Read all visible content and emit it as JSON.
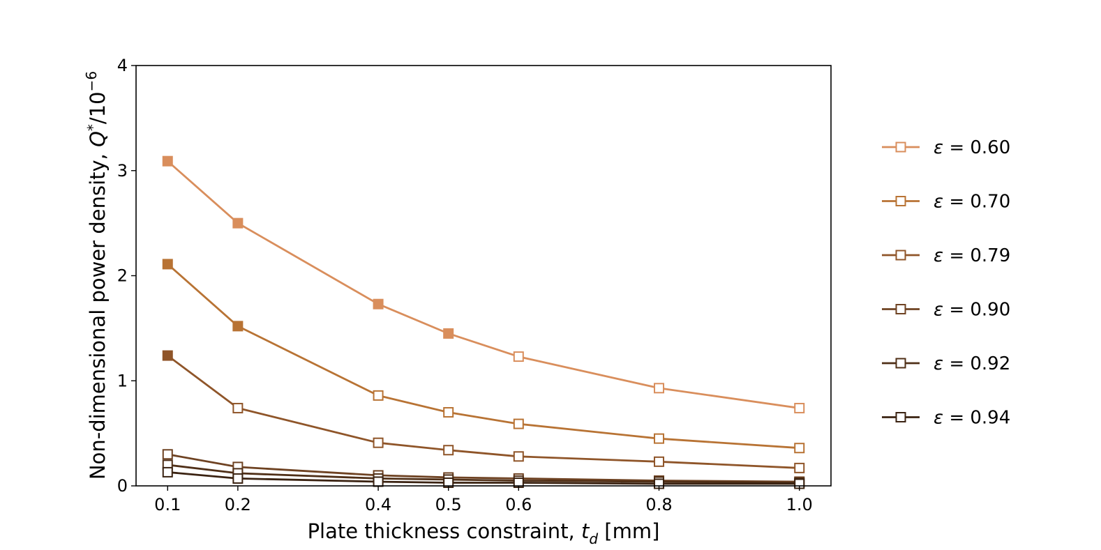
{
  "chart_data": {
    "type": "line",
    "title": "",
    "xlabel": {
      "prefix": "Plate thickness constraint, ",
      "var": "t",
      "sub": "d",
      "suffix": " [mm]"
    },
    "ylabel": {
      "prefix": "Non-dimensional power density, ",
      "var": "Q",
      "sup1": "*",
      "mid": "/10",
      "sup2": "−6"
    },
    "xlim": [
      0.055,
      1.045
    ],
    "ylim": [
      0,
      4
    ],
    "xticks": [
      0.1,
      0.2,
      0.4,
      0.5,
      0.6,
      0.8,
      1.0
    ],
    "xtick_labels": [
      "0.1",
      "0.2",
      "0.4",
      "0.5",
      "0.6",
      "0.8",
      "1.0"
    ],
    "yticks": [
      0,
      1,
      2,
      3,
      4
    ],
    "ytick_labels": [
      "0",
      "1",
      "2",
      "3",
      "4"
    ],
    "grid": false,
    "legend_position": "right",
    "x": [
      0.1,
      0.2,
      0.4,
      0.5,
      0.6,
      0.8,
      1.0
    ],
    "series": [
      {
        "name": "ε = 0.60",
        "color": "#d98e5c",
        "values": [
          3.09,
          2.5,
          1.73,
          1.45,
          1.23,
          0.93,
          0.74
        ],
        "filled": [
          true,
          true,
          true,
          true,
          false,
          false,
          false
        ]
      },
      {
        "name": "ε = 0.70",
        "color": "#b87334",
        "values": [
          2.11,
          1.52,
          0.86,
          0.7,
          0.59,
          0.45,
          0.36
        ],
        "filled": [
          true,
          true,
          false,
          false,
          false,
          false,
          false
        ]
      },
      {
        "name": "ε = 0.79",
        "color": "#8f5529",
        "values": [
          1.24,
          0.74,
          0.41,
          0.34,
          0.28,
          0.23,
          0.17
        ],
        "filled": [
          true,
          false,
          false,
          false,
          false,
          false,
          false
        ]
      },
      {
        "name": "ε = 0.90",
        "color": "#6e4222",
        "values": [
          0.3,
          0.18,
          0.1,
          0.08,
          0.07,
          0.05,
          0.04
        ],
        "filled": [
          false,
          false,
          false,
          false,
          false,
          false,
          false
        ]
      },
      {
        "name": "ε = 0.92",
        "color": "#4f2f17",
        "values": [
          0.2,
          0.12,
          0.07,
          0.06,
          0.05,
          0.04,
          0.03
        ],
        "filled": [
          false,
          false,
          false,
          false,
          false,
          false,
          false
        ]
      },
      {
        "name": "ε = 0.94",
        "color": "#3a2211",
        "values": [
          0.13,
          0.07,
          0.04,
          0.03,
          0.03,
          0.02,
          0.02
        ],
        "filled": [
          false,
          false,
          false,
          false,
          false,
          false,
          false
        ]
      }
    ]
  }
}
